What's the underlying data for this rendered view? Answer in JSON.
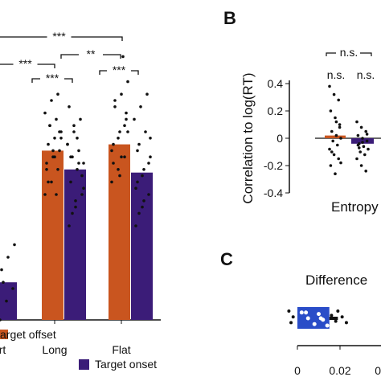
{
  "colors": {
    "orange": "#c9551f",
    "purple": "#3b1c78",
    "blue": "#2a4dc8",
    "axis": "#111111",
    "dot": "#111111"
  },
  "chart_data": [
    {
      "panel": "A",
      "type": "bar",
      "categories": [
        "rt",
        "Long",
        "Flat"
      ],
      "ylim": [
        -0.35,
        0.55
      ],
      "series": [
        {
          "name": "arget offset",
          "color_key": "orange",
          "values": [
            0.12,
            0.27,
            0.28
          ]
        },
        {
          "name": "Target onset",
          "color_key": "purple",
          "values": [
            0.06,
            0.24,
            0.235
          ]
        }
      ],
      "points": [
        [
          [
            0.08,
            0.14,
            0.1,
            0.16,
            0.2,
            0.12
          ],
          [
            0.0,
            0.03,
            0.05,
            0.08,
            0.1,
            0.12,
            0.06
          ]
        ],
        [
          [
            0.2,
            0.22,
            0.24,
            0.25,
            0.26,
            0.27,
            0.28,
            0.29,
            0.3,
            0.31,
            0.32,
            0.33,
            0.35,
            0.36,
            0.24,
            0.27,
            0.3,
            0.22,
            0.26,
            0.29,
            0.31,
            0.2
          ],
          [
            0.15,
            0.18,
            0.2,
            0.22,
            0.24,
            0.25,
            0.26,
            0.27,
            0.28,
            0.3,
            0.32,
            0.34,
            0.19,
            0.23,
            0.26,
            0.29,
            0.21,
            0.17,
            0.25,
            0.28,
            0.31
          ]
        ],
        [
          [
            0.22,
            0.24,
            0.26,
            0.28,
            0.3,
            0.32,
            0.34,
            0.36,
            0.38,
            0.4,
            0.42,
            0.27,
            0.29,
            0.31,
            0.25,
            0.23,
            0.33,
            0.35,
            0.26,
            0.3
          ],
          [
            0.15,
            0.18,
            0.2,
            0.22,
            0.24,
            0.26,
            0.28,
            0.3,
            0.32,
            0.34,
            0.36,
            0.21,
            0.23,
            0.25,
            0.27,
            0.19,
            0.29,
            0.17
          ]
        ]
      ],
      "significance": [
        {
          "label": "***"
        },
        {
          "label": "***"
        },
        {
          "label": "**"
        },
        {
          "label": "***"
        },
        {
          "label": "***"
        }
      ],
      "legend": [
        "arget offset",
        "Target onset"
      ]
    },
    {
      "panel": "B",
      "type": "bar",
      "ylabel": "Correlation to log(RT)",
      "xlabel": "Entropy",
      "ylim": [
        -0.4,
        0.4
      ],
      "yticks": [
        "0.4",
        "0.2",
        "0",
        "-0.2",
        "-0.4"
      ],
      "series": [
        {
          "color_key": "orange",
          "values": [
            0.02
          ]
        },
        {
          "color_key": "purple",
          "values": [
            -0.04
          ]
        }
      ],
      "points": [
        [
          0.38,
          0.32,
          0.28,
          0.2,
          0.15,
          0.1,
          0.05,
          0.02,
          0.0,
          -0.02,
          -0.05,
          -0.08,
          -0.12,
          -0.15,
          -0.2,
          -0.26,
          0.08,
          -0.1,
          0.12,
          -0.18
        ],
        [
          0.12,
          0.08,
          0.05,
          0.02,
          0.0,
          -0.02,
          -0.04,
          -0.06,
          -0.08,
          -0.1,
          -0.12,
          -0.15,
          -0.2,
          -0.24,
          -0.05,
          -0.03,
          0.03,
          -0.07
        ]
      ],
      "significance": [
        "n.s.",
        "n.s.",
        "n.s."
      ]
    },
    {
      "panel": "C",
      "type": "bar",
      "title": "Difference",
      "xticks": [
        "0",
        "0.02",
        "0.0"
      ],
      "xlim": [
        0,
        0.04
      ],
      "series": [
        {
          "color_key": "blue",
          "values": [
            0.015
          ]
        }
      ],
      "error": 0.004,
      "points": [
        -0.004,
        -0.002,
        -0.003,
        0.002,
        0.005,
        0.008,
        0.01,
        0.012,
        0.014,
        0.016,
        0.018,
        0.019,
        0.021,
        0.023,
        0.004,
        0.011
      ]
    }
  ]
}
